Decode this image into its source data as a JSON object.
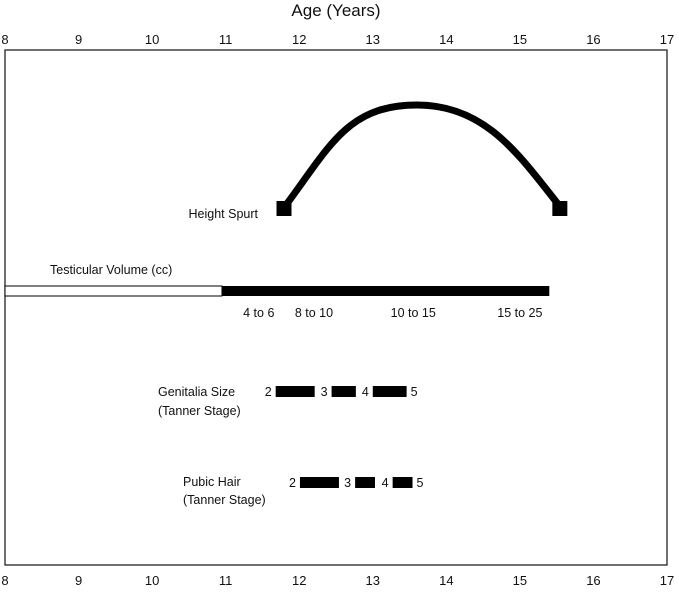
{
  "chart_data": {
    "type": "timeline",
    "title": "Age (Years)",
    "xlim": [
      8,
      17
    ],
    "ticks": [
      "8",
      "9",
      "10",
      "11",
      "12",
      "13",
      "14",
      "15",
      "16",
      "17"
    ],
    "height_spurt": {
      "label": "Height Spurt",
      "start": 11.8,
      "peak": 13.6,
      "end": 15.55
    },
    "testicular_volume": {
      "label": "Testicular Volume (cc)",
      "prepubertal": [
        8,
        10.95
      ],
      "pubertal": [
        10.95,
        15.4
      ],
      "annotations": [
        {
          "text": "4 to 6",
          "age": 11.45
        },
        {
          "text": "8 to 10",
          "age": 12.2
        },
        {
          "text": "10 to 15",
          "age": 13.55
        },
        {
          "text": "15 to 25",
          "age": 15.0
        }
      ]
    },
    "genitalia": {
      "label1": "Genitalia Size",
      "label2": "(Tanner Stage)",
      "stages": [
        "2",
        "3",
        "4",
        "5"
      ],
      "segments": [
        [
          11.68,
          12.21
        ],
        [
          12.44,
          12.77
        ],
        [
          13.0,
          13.46
        ]
      ]
    },
    "pubic_hair": {
      "label1": "Pubic Hair",
      "label2": "(Tanner Stage)",
      "stages": [
        "2",
        "3",
        "4",
        "5"
      ],
      "segments": [
        [
          12.01,
          12.54
        ],
        [
          12.76,
          13.03
        ],
        [
          13.27,
          13.54
        ]
      ]
    }
  }
}
